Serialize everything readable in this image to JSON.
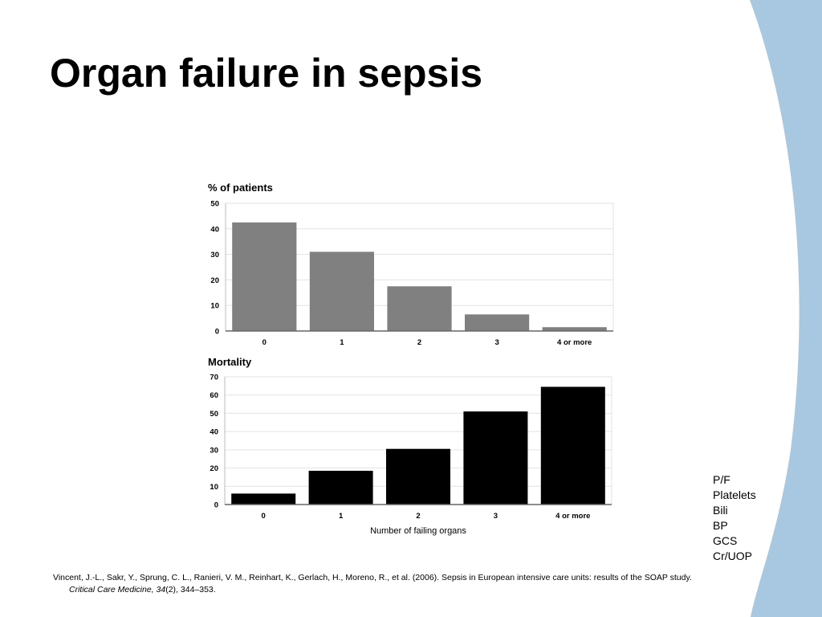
{
  "slide": {
    "title": "Organ failure in sepsis",
    "accent_color": "#a7c8e0"
  },
  "chart_data": [
    {
      "type": "bar",
      "title": "% of patients",
      "categories": [
        "0",
        "1",
        "2",
        "3",
        "4 or more"
      ],
      "values": [
        42.5,
        31,
        17.5,
        6.5,
        1.5
      ],
      "ylim": [
        0,
        50
      ],
      "yticks": [
        0,
        10,
        20,
        30,
        40,
        50
      ],
      "xlabel": "",
      "bar_color": "#808080",
      "grid": true
    },
    {
      "type": "bar",
      "title": "Mortality",
      "categories": [
        "0",
        "1",
        "2",
        "3",
        "4 or more"
      ],
      "values": [
        6,
        18.5,
        30.5,
        51,
        64.5
      ],
      "ylim": [
        0,
        70
      ],
      "yticks": [
        0,
        10,
        20,
        30,
        40,
        50,
        60,
        70
      ],
      "xlabel": "Number of failing organs",
      "bar_color": "#000000",
      "grid": true
    }
  ],
  "organ_list": [
    "P/F",
    "Platelets",
    "Bili",
    "BP",
    "GCS",
    "Cr/UOP"
  ],
  "citation": {
    "text": "Vincent, J.-L., Sakr, Y., Sprung, C. L., Ranieri, V. M., Reinhart, K., Gerlach, H., Moreno, R., et al. (2006). Sepsis in European intensive care units: results of the SOAP study.",
    "journal": "Critical Care Medicine, 34",
    "journal_rest": "(2), 344–353."
  }
}
